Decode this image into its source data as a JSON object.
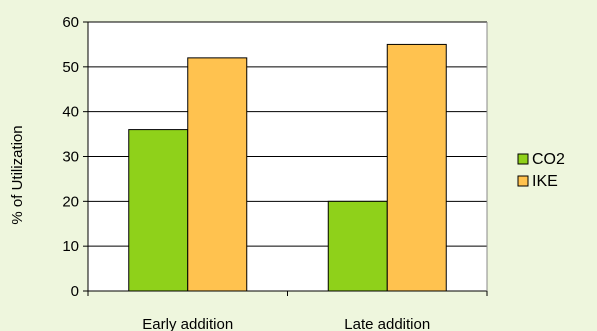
{
  "chart_data": {
    "type": "bar",
    "categories": [
      "Early addition",
      "Late addition"
    ],
    "series": [
      {
        "name": "CO2",
        "values": [
          36,
          20
        ]
      },
      {
        "name": "IKE",
        "values": [
          52,
          55
        ]
      }
    ],
    "title": "",
    "xlabel": "",
    "ylabel": "% of Utilization",
    "ylim": [
      0,
      60
    ],
    "yticks": [
      0,
      10,
      20,
      30,
      40,
      50,
      60
    ],
    "grid": true,
    "legend": "right"
  },
  "colors": {
    "background": "#eef6dd",
    "plot_area": "#ffffff",
    "CO2": "#8fd11a",
    "IKE": "#ffc24f",
    "bar_outline": "#000000",
    "gridline": "#000000"
  }
}
